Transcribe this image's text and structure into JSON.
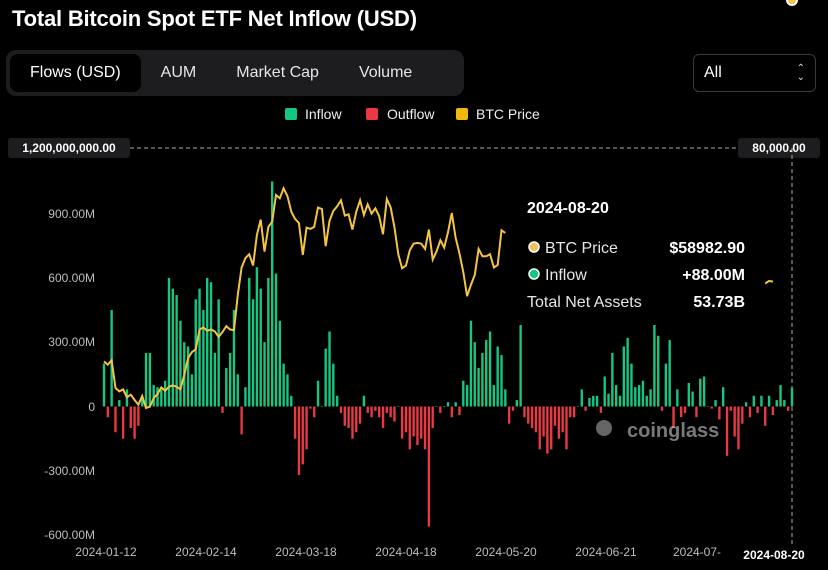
{
  "title": "Total Bitcoin Spot ETF Net Inflow (USD)",
  "tabs": [
    {
      "label": "Flows (USD)",
      "active": true
    },
    {
      "label": "AUM",
      "active": false
    },
    {
      "label": "Market Cap",
      "active": false
    },
    {
      "label": "Volume",
      "active": false
    }
  ],
  "range_select": {
    "value": "All"
  },
  "watermark": "coinglass",
  "tooltip": {
    "date": "2024-08-20",
    "rows": [
      {
        "label": "BTC Price",
        "value": "$58982.90"
      },
      {
        "label": "Inflow",
        "value": "+88.00M"
      },
      {
        "label": "Total Net Assets",
        "value": "53.73B"
      }
    ]
  },
  "chart_data": {
    "type": "bar",
    "title": "Total Bitcoin Spot ETF Net Inflow (USD)",
    "legend": [
      {
        "name": "Inflow",
        "color": "#16c784"
      },
      {
        "name": "Outflow",
        "color": "#ea3943"
      },
      {
        "name": "BTC Price",
        "color": "#f0b90b"
      }
    ],
    "legend_position": "top-center",
    "y_left": {
      "ticks": [
        "-600.00M",
        "-300.00M",
        "0",
        "300.00M",
        "600.00M",
        "900.00M"
      ],
      "max_label": "1,200,000,000.00",
      "range": [
        -600000000,
        1200000000
      ]
    },
    "y_right": {
      "max_label": "80,000.00",
      "range": [
        0,
        80000
      ]
    },
    "x_ticks": [
      "2024-01-12",
      "2024-02-14",
      "2024-03-18",
      "2024-04-18",
      "2024-05-20",
      "2024-06-21",
      "2024-07-",
      "2024-08-20"
    ],
    "grid": false,
    "net_flow_millions": [
      200,
      -50,
      450,
      -120,
      30,
      -150,
      80,
      -100,
      -150,
      -90,
      50,
      250,
      250,
      100,
      90,
      80,
      120,
      600,
      550,
      520,
      400,
      300,
      280,
      150,
      500,
      550,
      450,
      600,
      580,
      250,
      500,
      -30,
      180,
      250,
      450,
      150,
      -130,
      90,
      600,
      500,
      650,
      550,
      300,
      600,
      1050,
      620,
      400,
      200,
      150,
      50,
      -150,
      -320,
      -270,
      -200,
      -10,
      -50,
      120,
      0,
      270,
      350,
      200,
      50,
      -30,
      -90,
      -100,
      -150,
      -120,
      -80,
      50,
      -30,
      -50,
      -20,
      -50,
      -100,
      -30,
      -50,
      -70,
      0,
      -150,
      -120,
      -200,
      -140,
      -180,
      -150,
      -200,
      -560,
      -100,
      0,
      -30,
      0,
      20,
      -50,
      20,
      -40,
      120,
      100,
      400,
      300,
      180,
      250,
      310,
      350,
      100,
      280,
      240,
      80,
      -80,
      -20,
      30,
      380,
      -50,
      -80,
      -100,
      -120,
      -200,
      -140,
      -220,
      -200,
      -90,
      -150,
      -120,
      -200,
      -50,
      -50,
      0,
      80,
      -20,
      40,
      50,
      50,
      -30,
      140,
      60,
      250,
      100,
      50,
      280,
      320,
      200,
      90,
      100,
      120,
      50,
      80,
      380,
      330,
      -20,
      200,
      310,
      -100,
      80,
      -50,
      -30,
      110,
      70,
      -50,
      130,
      140,
      0,
      -10,
      30,
      -60,
      90,
      -230,
      -20,
      -140,
      -200,
      -80,
      20,
      -50,
      50,
      -30,
      50,
      -90,
      50,
      -40,
      30,
      100,
      30,
      -20,
      88
    ],
    "btc_price": [
      47000,
      46500,
      47200,
      43000,
      42500,
      42800,
      41600,
      42000,
      41200,
      40500,
      41800,
      40000,
      40200,
      41500,
      42100,
      43100,
      42600,
      43200,
      43400,
      43200,
      42800,
      45000,
      47500,
      48400,
      48800,
      51800,
      52100,
      51600,
      51800,
      51500,
      50700,
      51400,
      52300,
      51800,
      51700,
      57000,
      61100,
      62500,
      63100,
      61400,
      66000,
      68300,
      63500,
      67200,
      68000,
      72000,
      71500,
      73000,
      71800,
      69500,
      68400,
      67800,
      63000,
      67100,
      66900,
      67200,
      70100,
      69900,
      64300,
      68100,
      69600,
      70300,
      71200,
      68900,
      69100,
      66800,
      69500,
      71200,
      69000,
      70600,
      69200,
      70000,
      68800,
      66100,
      71400,
      70100,
      67100,
      63100,
      61000,
      61400,
      63700,
      64700,
      64800,
      64700,
      63900,
      66800,
      62300,
      63500,
      65200,
      64100,
      66400,
      69300,
      65600,
      63200,
      60400,
      56800,
      58500,
      60000,
      63900,
      62800,
      62800,
      63100,
      61100,
      61500,
      66700,
      66300,
      65900,
      63800,
      66300,
      67200,
      68400,
      69500,
      71700,
      69300,
      69100,
      67200,
      67800,
      68800,
      67000,
      68200,
      67800,
      66200,
      67700,
      67800,
      66700,
      69400,
      67500,
      68200,
      66100,
      62700,
      62500,
      60100,
      58900,
      59300,
      56800,
      60800,
      57700,
      54000,
      57900,
      57700,
      61100,
      64100,
      64900,
      67500,
      65600,
      68200,
      67500,
      68600,
      66200,
      65100,
      66800,
      70000,
      68400,
      66800,
      65600,
      61000,
      60000,
      57000,
      54000,
      55000,
      61000,
      61000,
      59000,
      58800,
      58100,
      58800,
      59600,
      58900,
      60400,
      59400,
      58800,
      58000,
      57500,
      58700,
      59100,
      58982.9
    ],
    "selected": {
      "date": "2024-08-20",
      "btc_price": 58982.9,
      "inflow_millions": 88.0,
      "total_net_assets": "53.73B"
    }
  }
}
